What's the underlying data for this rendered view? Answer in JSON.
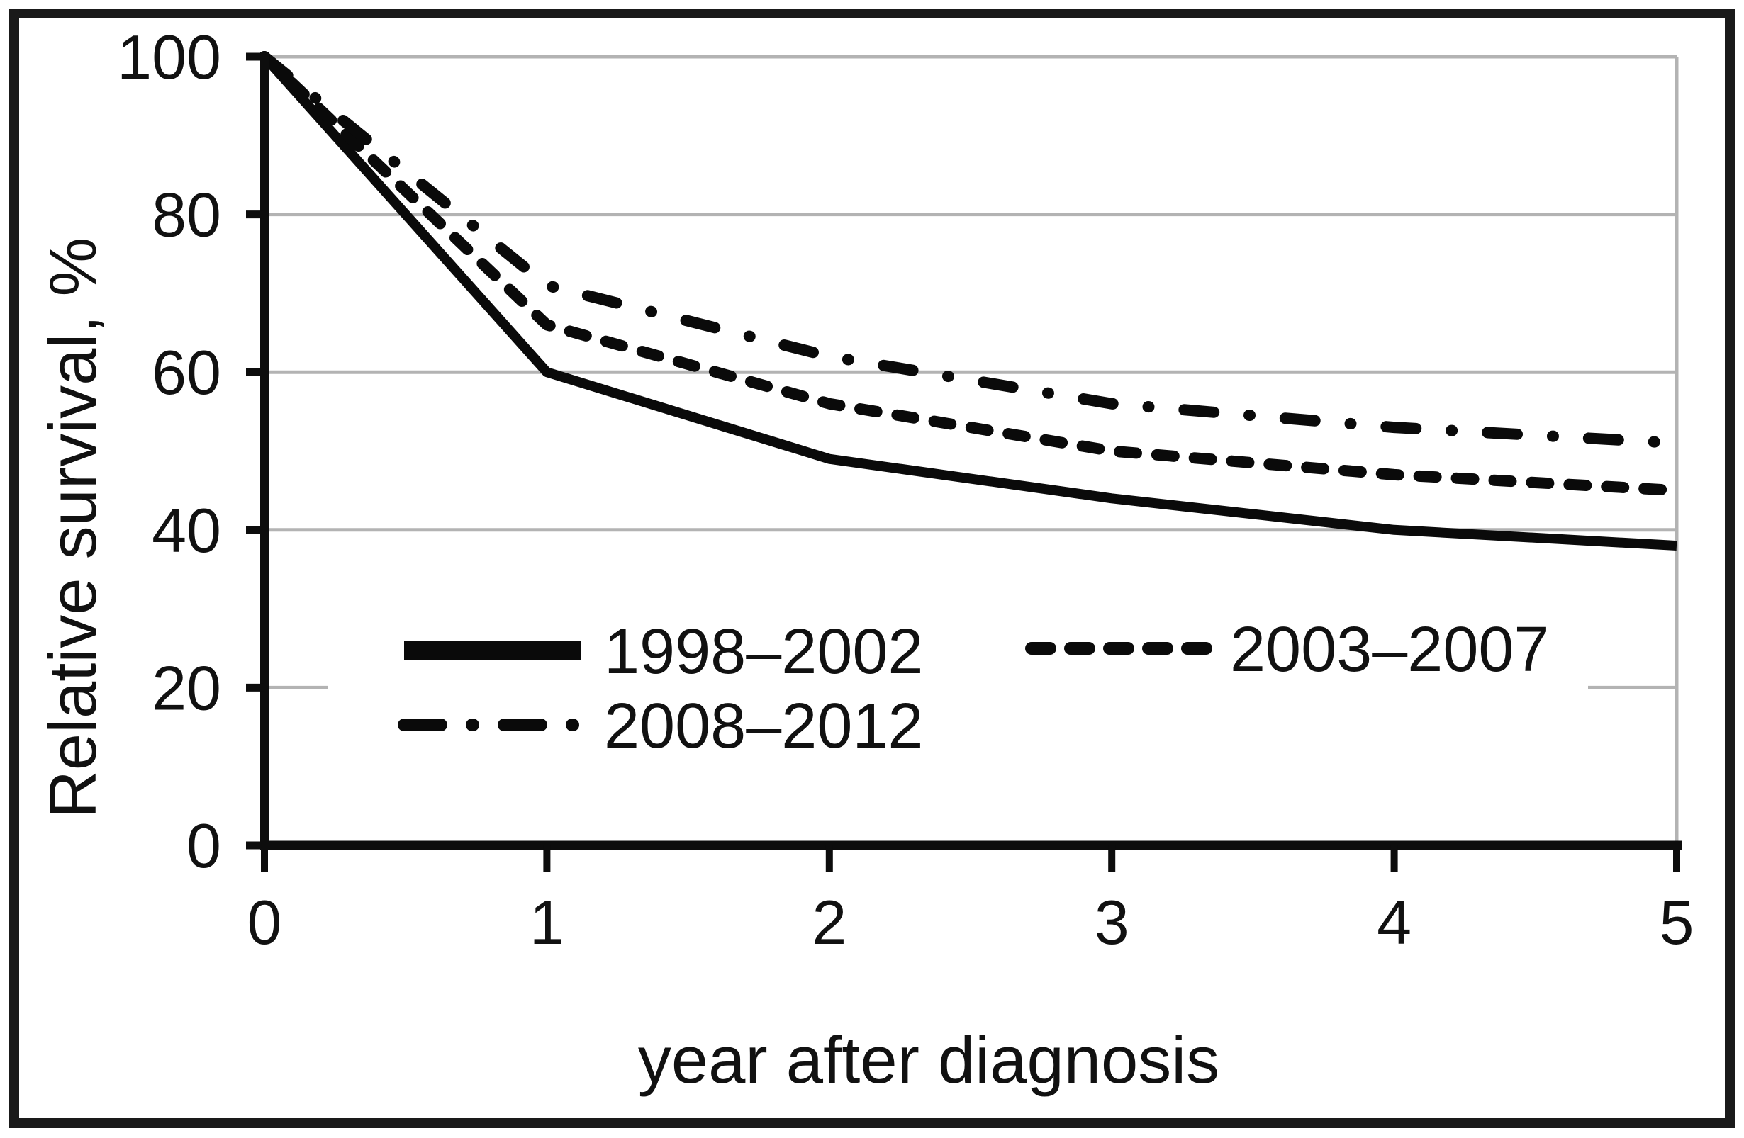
{
  "figure": {
    "background_color": "#ffffff",
    "frame_color": "#1a1a1a",
    "grid_color": "#b3b3b3",
    "axis_color": "#0d0d0d",
    "line_color": "#0a0a0a",
    "text_color": "#111111"
  },
  "chart_data": {
    "type": "line",
    "title": "",
    "xlabel": "year after diagnosis",
    "ylabel": "Relative survival, %",
    "x": [
      0,
      1,
      2,
      3,
      4,
      5
    ],
    "xlim": [
      0,
      5
    ],
    "ylim": [
      0,
      100
    ],
    "x_ticks": [
      "0",
      "1",
      "2",
      "3",
      "4",
      "5"
    ],
    "y_ticks": [
      "0",
      "20",
      "40",
      "60",
      "80",
      "100"
    ],
    "grid": "horizontal gridlines at 20, 40, 60, 80, 100",
    "legend_position": "inside plot, lower left, two columns, no border",
    "series": [
      {
        "name": "1998–2002",
        "style": "solid",
        "values": [
          100,
          60,
          49,
          44,
          40,
          38
        ]
      },
      {
        "name": "2003–2007",
        "style": "dashed",
        "values": [
          100,
          66,
          56,
          50,
          47,
          45
        ]
      },
      {
        "name": "2008–2012",
        "style": "dashdot",
        "values": [
          100,
          71,
          62,
          56,
          53,
          51
        ]
      }
    ],
    "legend_order_note": "row1: 1998-2002 (left), 2003-2007 (right); row2: 2008-2012 (left)"
  }
}
